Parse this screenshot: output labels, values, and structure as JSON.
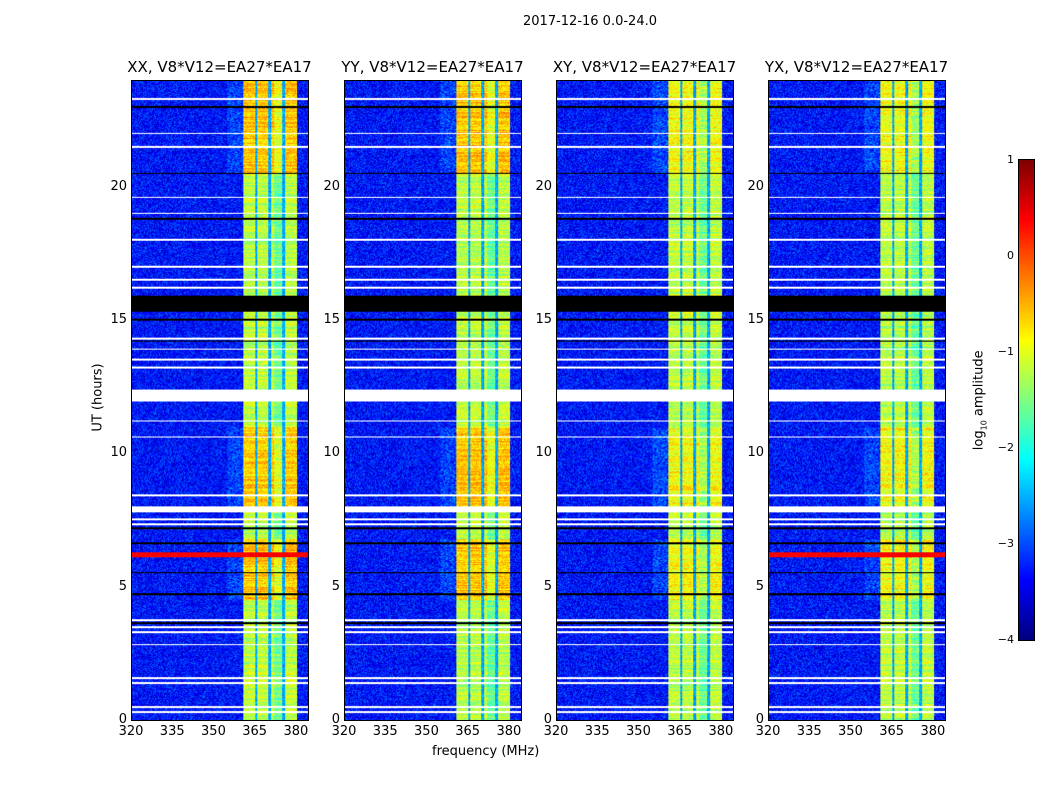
{
  "chart_data": {
    "type": "heatmap",
    "title": "2017-12-16 0.0-24.0",
    "xlabel": "frequency (MHz)",
    "ylabel": "UT (hours)",
    "xlim": [
      320,
      384.4
    ],
    "ylim": [
      0,
      24
    ],
    "xticks": [
      "320",
      "335",
      "350",
      "365",
      "380"
    ],
    "yticks": [
      "0",
      "5",
      "10",
      "15",
      "20"
    ],
    "panels": [
      {
        "title": "XX, V8*V12=EA27*EA17",
        "rfi_low_freq": true
      },
      {
        "title": "YY, V8*V12=EA27*EA17",
        "rfi_low_freq": false
      },
      {
        "title": "XY, V8*V12=EA27*EA17",
        "rfi_low_freq": false
      },
      {
        "title": "YX, V8*V12=EA27*EA17",
        "rfi_low_freq": true
      }
    ],
    "band_mhz": [
      360.7,
      380.4
    ],
    "band_gaps_mhz": [
      365.5,
      370.5,
      375.6
    ],
    "background_log_amp": -3.3,
    "band_log_amp": -1.2,
    "bright_intervals_hours": [
      [
        4.5,
        6.8
      ],
      [
        8.0,
        11.0
      ],
      [
        20.5,
        24.0
      ]
    ],
    "flagged_white_hours": [
      [
        0.25,
        0.32
      ],
      [
        0.45,
        0.52
      ],
      [
        1.35,
        1.42
      ],
      [
        1.55,
        1.62
      ],
      [
        2.8,
        2.86
      ],
      [
        3.25,
        3.32
      ],
      [
        3.45,
        3.52
      ],
      [
        3.72,
        3.8
      ],
      [
        7.3,
        7.38
      ],
      [
        7.5,
        7.56
      ],
      [
        7.8,
        8.02
      ],
      [
        8.4,
        8.46
      ],
      [
        10.6,
        10.66
      ],
      [
        11.2,
        11.26
      ],
      [
        11.95,
        12.4
      ],
      [
        13.2,
        13.26
      ],
      [
        13.5,
        13.56
      ],
      [
        13.9,
        13.96
      ],
      [
        14.3,
        14.36
      ],
      [
        16.2,
        16.26
      ],
      [
        16.5,
        16.56
      ],
      [
        17.0,
        17.06
      ],
      [
        18.0,
        18.06
      ],
      [
        19.0,
        19.06
      ],
      [
        19.6,
        19.66
      ],
      [
        21.5,
        21.56
      ],
      [
        22.0,
        22.06
      ],
      [
        23.3,
        23.36
      ]
    ],
    "flagged_black_hours": [
      [
        3.6,
        3.66
      ],
      [
        4.7,
        4.76
      ],
      [
        5.5,
        5.56
      ],
      [
        6.6,
        6.66
      ],
      [
        7.15,
        7.22
      ],
      [
        14.2,
        14.26
      ],
      [
        15.0,
        15.06
      ],
      [
        15.35,
        15.95
      ],
      [
        18.8,
        18.86
      ],
      [
        20.5,
        20.56
      ],
      [
        23.0,
        23.06
      ]
    ],
    "colorbar": {
      "label": "log10 amplitude",
      "label_base": "log",
      "label_sub": "10",
      "label_rest": " amplitude",
      "range": [
        -4,
        1
      ],
      "ticks": [
        "1",
        "0",
        "−1",
        "−2",
        "−3",
        "−4"
      ],
      "colormap": "jet"
    }
  }
}
